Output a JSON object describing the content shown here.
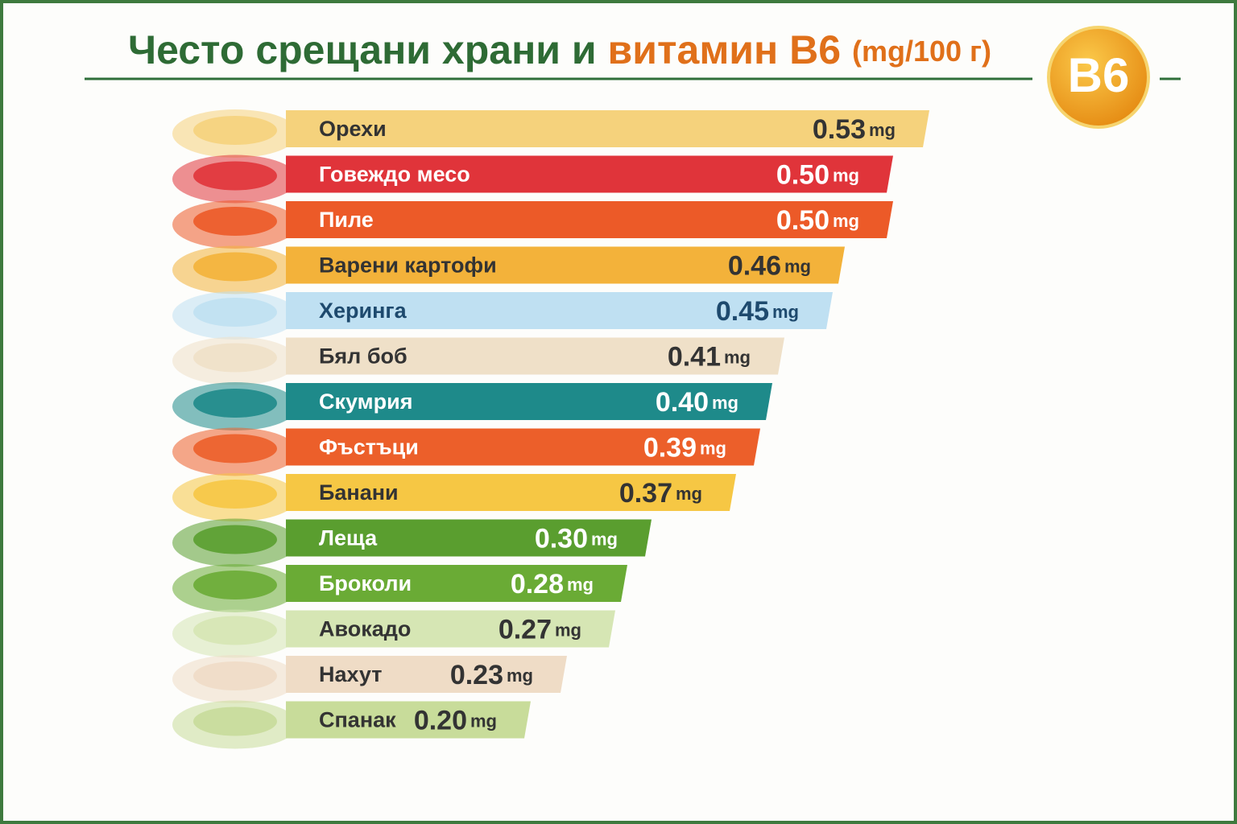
{
  "chart_data": {
    "type": "bar",
    "title_parts": [
      "Често срещани храни и",
      "витамин B6",
      "(mg/100 г)"
    ],
    "badge": "B6",
    "unit": "mg",
    "categories": [
      "Орехи",
      "Говеждо месо",
      "Пиле",
      "Варени картофи",
      "Херинга",
      "Бял боб",
      "Скумрия",
      "Фъстъци",
      "Банани",
      "Леща",
      "Броколи",
      "Авокадо",
      "Нахут",
      "Спанак"
    ],
    "values": [
      0.53,
      0.5,
      0.5,
      0.46,
      0.45,
      0.41,
      0.4,
      0.39,
      0.37,
      0.3,
      0.28,
      0.27,
      0.23,
      0.2
    ],
    "value_labels": [
      "0.53",
      "0.50",
      "0.50",
      "0.46",
      "0.45",
      "0.41",
      "0.40",
      "0.39",
      "0.37",
      "0.30",
      "0.28",
      "0.27",
      "0.23",
      "0.20"
    ],
    "colors": [
      "#f5d27c",
      "#e0343a",
      "#ec5a28",
      "#f3b23a",
      "#bfe0f2",
      "#efe0c8",
      "#1e8a8a",
      "#ec5f2a",
      "#f6c744",
      "#5a9e2f",
      "#6aab35",
      "#d6e6b4",
      "#efdcc6",
      "#c8dc9a"
    ]
  }
}
